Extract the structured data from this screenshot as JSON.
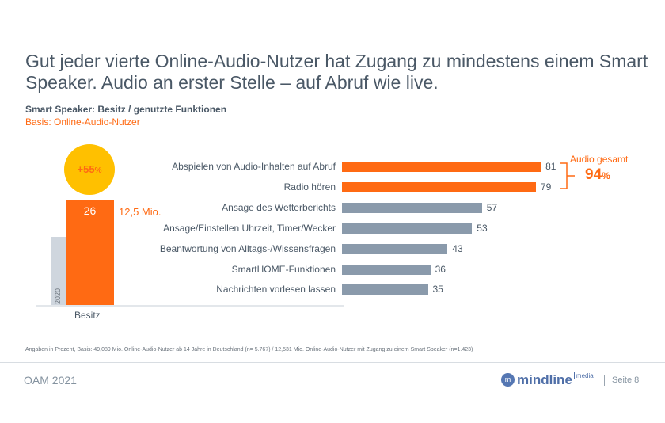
{
  "title": "Gut jeder vierte Online-Audio-Nutzer hat Zugang zu mindestens einem Smart Speaker. Audio an erster Stelle – auf Abruf wie live.",
  "subtitle": "Smart Speaker: Besitz / genutzte Funktionen",
  "basis": "Basis: Online-Audio-Nutzer",
  "colors": {
    "orange": "#ff6a13",
    "gray": "#8a9aab",
    "light_gray": "#cfd6de",
    "yellow": "#ffc000",
    "text": "#4a5866"
  },
  "chart_data": [
    {
      "type": "bar",
      "orientation": "vertical",
      "categories": [
        "Besitz"
      ],
      "series": [
        {
          "name": "2020",
          "values": [
            17
          ]
        },
        {
          "values": [
            26
          ]
        }
      ],
      "value_label": "26",
      "annotation": "12,5 Mio.",
      "badge": "+55",
      "badge_unit": "%"
    },
    {
      "type": "bar",
      "orientation": "horizontal",
      "categories": [
        "Abspielen von Audio-Inhalten auf Abruf",
        "Radio hören",
        "Ansage des Wetterberichts",
        "Ansage/Einstellen Uhrzeit, Timer/Wecker",
        "Beantwortung von Alltags-/Wissensfragen",
        "SmartHOME-Funktionen",
        "Nachrichten vorlesen lassen"
      ],
      "values": [
        81,
        79,
        57,
        53,
        43,
        36,
        35
      ],
      "highlight": [
        true,
        true,
        false,
        false,
        false,
        false,
        false
      ],
      "xlim": [
        0,
        100
      ],
      "annotation": {
        "label": "Audio gesamt",
        "value": "94",
        "unit": "%"
      }
    }
  ],
  "footnote": "Angaben in Prozent, Basis: 49,089 Mio. Online-Audio-Nutzer ab 14 Jahre in Deutschland (n= 5.767) / 12,531 Mio. Online-Audio-Nutzer mit Zugang zu einem Smart Speaker (n=1.423)",
  "footer": {
    "left": "OAM 2021",
    "logo": "mindline media",
    "logo_main": "mindline",
    "logo_sup": "media",
    "page": "Seite 8"
  }
}
